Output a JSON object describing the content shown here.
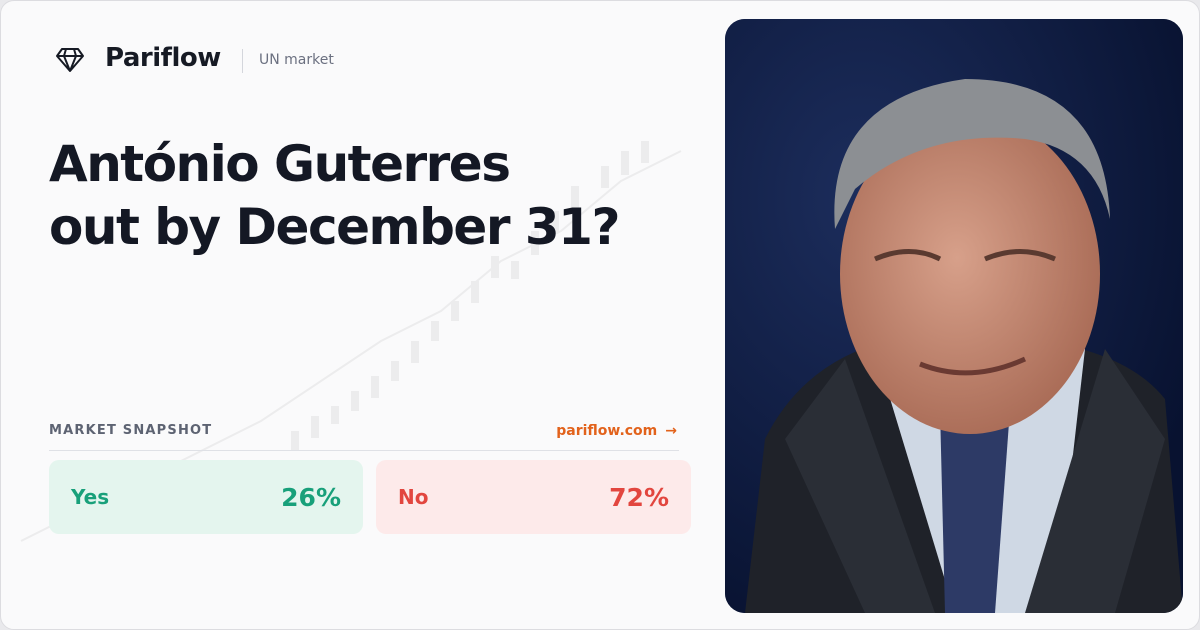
{
  "brand": "Pariflow",
  "category": "UN market",
  "title_lines": [
    "António Guterres",
    "out by December 31?"
  ],
  "snapshot": {
    "label": "MARKET SNAPSHOT",
    "link": "pariflow.com",
    "link_arrow": "→"
  },
  "outcomes": [
    {
      "name": "Yes",
      "value": "26%"
    },
    {
      "name": "No",
      "value": "72%"
    }
  ]
}
